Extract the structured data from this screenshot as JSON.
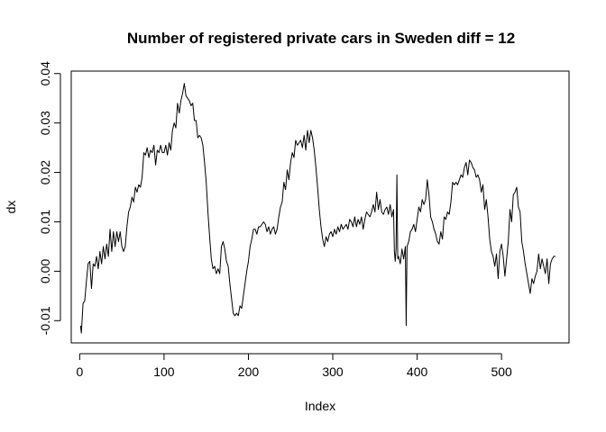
{
  "chart_data": {
    "type": "line",
    "title": "Number of registered private cars in Sweden diff = 12",
    "xlabel": "Index",
    "ylabel": "dx",
    "xlim": [
      -10,
      580
    ],
    "ylim": [
      -0.0145,
      0.0405
    ],
    "x_ticks": [
      0,
      100,
      200,
      300,
      400,
      500
    ],
    "x_tick_labels": [
      "0",
      "100",
      "200",
      "300",
      "400",
      "500"
    ],
    "y_ticks": [
      -0.01,
      0.0,
      0.01,
      0.02,
      0.03,
      0.04
    ],
    "y_tick_labels": [
      "-0.01",
      "0.00",
      "0.01",
      "0.02",
      "0.03",
      "0.04"
    ],
    "grid": false,
    "legend": "none",
    "series": [
      {
        "color": "#000000",
        "anchors": [
          [
            1,
            -0.011
          ],
          [
            2,
            -0.0125
          ],
          [
            4,
            -0.0065
          ],
          [
            6,
            -0.006
          ],
          [
            8,
            -0.002
          ],
          [
            10,
            0.0015
          ],
          [
            12,
            0.002
          ],
          [
            14,
            -0.0035
          ],
          [
            16,
            0.0015
          ],
          [
            18,
            0.001
          ],
          [
            20,
            0.003
          ],
          [
            22,
            0.0005
          ],
          [
            24,
            0.004
          ],
          [
            26,
            0.0015
          ],
          [
            28,
            0.005
          ],
          [
            30,
            0.0025
          ],
          [
            32,
            0.0055
          ],
          [
            34,
            0.003
          ],
          [
            36,
            0.0085
          ],
          [
            38,
            0.004
          ],
          [
            40,
            0.008
          ],
          [
            42,
            0.005
          ],
          [
            44,
            0.008
          ],
          [
            46,
            0.006
          ],
          [
            48,
            0.008
          ],
          [
            50,
            0.005
          ],
          [
            52,
            0.004
          ],
          [
            54,
            0.005
          ],
          [
            56,
            0.009
          ],
          [
            58,
            0.012
          ],
          [
            60,
            0.013
          ],
          [
            62,
            0.015
          ],
          [
            64,
            0.014
          ],
          [
            66,
            0.017
          ],
          [
            68,
            0.016
          ],
          [
            70,
            0.0175
          ],
          [
            72,
            0.017
          ],
          [
            74,
            0.019
          ],
          [
            76,
            0.024
          ],
          [
            78,
            0.0235
          ],
          [
            80,
            0.025
          ],
          [
            82,
            0.023
          ],
          [
            84,
            0.0245
          ],
          [
            86,
            0.024
          ],
          [
            88,
            0.0255
          ],
          [
            90,
            0.0215
          ],
          [
            92,
            0.0245
          ],
          [
            94,
            0.024
          ],
          [
            96,
            0.0255
          ],
          [
            98,
            0.024
          ],
          [
            100,
            0.024
          ],
          [
            102,
            0.0255
          ],
          [
            104,
            0.0235
          ],
          [
            106,
            0.026
          ],
          [
            108,
            0.0245
          ],
          [
            110,
            0.0285
          ],
          [
            112,
            0.03
          ],
          [
            114,
            0.029
          ],
          [
            116,
            0.034
          ],
          [
            118,
            0.032
          ],
          [
            120,
            0.0345
          ],
          [
            122,
            0.036
          ],
          [
            124,
            0.038
          ],
          [
            126,
            0.0355
          ],
          [
            128,
            0.035
          ],
          [
            130,
            0.0345
          ],
          [
            132,
            0.0335
          ],
          [
            134,
            0.034
          ],
          [
            136,
            0.0305
          ],
          [
            138,
            0.0305
          ],
          [
            140,
            0.027
          ],
          [
            142,
            0.0275
          ],
          [
            144,
            0.027
          ],
          [
            146,
            0.0255
          ],
          [
            148,
            0.022
          ],
          [
            150,
            0.018
          ],
          [
            152,
            0.012
          ],
          [
            154,
            0.007
          ],
          [
            156,
            0.0025
          ],
          [
            158,
            0.0005
          ],
          [
            160,
            0.001
          ],
          [
            162,
            -0.0005
          ],
          [
            164,
            0.0005
          ],
          [
            166,
            -0.0005
          ],
          [
            168,
            0.005
          ],
          [
            170,
            0.006
          ],
          [
            172,
            0.0045
          ],
          [
            174,
            0.002
          ],
          [
            176,
            0.001
          ],
          [
            178,
            -0.0025
          ],
          [
            180,
            -0.0055
          ],
          [
            182,
            -0.0085
          ],
          [
            184,
            -0.009
          ],
          [
            186,
            -0.0085
          ],
          [
            188,
            -0.009
          ],
          [
            190,
            -0.007
          ],
          [
            192,
            -0.0075
          ],
          [
            194,
            -0.005
          ],
          [
            196,
            -0.0025
          ],
          [
            198,
            0.0
          ],
          [
            200,
            0.002
          ],
          [
            202,
            0.005
          ],
          [
            204,
            0.0065
          ],
          [
            206,
            0.0085
          ],
          [
            208,
            0.0085
          ],
          [
            210,
            0.0075
          ],
          [
            212,
            0.009
          ],
          [
            214,
            0.009
          ],
          [
            216,
            0.0095
          ],
          [
            218,
            0.01
          ],
          [
            220,
            0.0095
          ],
          [
            222,
            0.008
          ],
          [
            224,
            0.009
          ],
          [
            226,
            0.0075
          ],
          [
            228,
            0.0085
          ],
          [
            230,
            0.009
          ],
          [
            232,
            0.0075
          ],
          [
            234,
            0.0085
          ],
          [
            236,
            0.011
          ],
          [
            238,
            0.013
          ],
          [
            240,
            0.014
          ],
          [
            242,
            0.018
          ],
          [
            244,
            0.0165
          ],
          [
            246,
            0.0205
          ],
          [
            248,
            0.0185
          ],
          [
            250,
            0.022
          ],
          [
            252,
            0.024
          ],
          [
            254,
            0.023
          ],
          [
            256,
            0.0265
          ],
          [
            258,
            0.0255
          ],
          [
            260,
            0.026
          ],
          [
            262,
            0.0265
          ],
          [
            264,
            0.025
          ],
          [
            266,
            0.0275
          ],
          [
            268,
            0.0245
          ],
          [
            270,
            0.0285
          ],
          [
            272,
            0.026
          ],
          [
            274,
            0.0285
          ],
          [
            276,
            0.027
          ],
          [
            278,
            0.0245
          ],
          [
            280,
            0.021
          ],
          [
            282,
            0.017
          ],
          [
            284,
            0.0125
          ],
          [
            286,
            0.009
          ],
          [
            288,
            0.0065
          ],
          [
            290,
            0.005
          ],
          [
            292,
            0.007
          ],
          [
            294,
            0.006
          ],
          [
            296,
            0.0075
          ],
          [
            298,
            0.008
          ],
          [
            300,
            0.007
          ],
          [
            302,
            0.0085
          ],
          [
            304,
            0.0075
          ],
          [
            306,
            0.009
          ],
          [
            308,
            0.008
          ],
          [
            310,
            0.0095
          ],
          [
            312,
            0.0085
          ],
          [
            314,
            0.009
          ],
          [
            316,
            0.0095
          ],
          [
            318,
            0.0085
          ],
          [
            320,
            0.0105
          ],
          [
            322,
            0.01
          ],
          [
            324,
            0.009
          ],
          [
            326,
            0.011
          ],
          [
            328,
            0.009
          ],
          [
            330,
            0.0105
          ],
          [
            332,
            0.0095
          ],
          [
            334,
            0.011
          ],
          [
            336,
            0.0085
          ],
          [
            338,
            0.0105
          ],
          [
            340,
            0.012
          ],
          [
            342,
            0.0115
          ],
          [
            344,
            0.011
          ],
          [
            346,
            0.012
          ],
          [
            348,
            0.0135
          ],
          [
            350,
            0.012
          ],
          [
            352,
            0.016
          ],
          [
            354,
            0.0125
          ],
          [
            356,
            0.0145
          ],
          [
            358,
            0.012
          ],
          [
            360,
            0.0115
          ],
          [
            362,
            0.0125
          ],
          [
            364,
            0.013
          ],
          [
            366,
            0.0115
          ],
          [
            368,
            0.0135
          ],
          [
            370,
            0.011
          ],
          [
            372,
            0.0125
          ],
          [
            373,
            0.004
          ],
          [
            374,
            0.002
          ],
          [
            375,
            0.0045
          ],
          [
            376,
            0.0195
          ],
          [
            377,
            0.0025
          ],
          [
            378,
            0.003
          ],
          [
            380,
            0.0015
          ],
          [
            382,
            0.0045
          ],
          [
            384,
            0.0025
          ],
          [
            386,
            0.005
          ],
          [
            387,
            -0.011
          ],
          [
            388,
            0.005
          ],
          [
            390,
            0.006
          ],
          [
            392,
            0.008
          ],
          [
            394,
            0.0085
          ],
          [
            396,
            0.0095
          ],
          [
            398,
            0.008
          ],
          [
            400,
            0.0105
          ],
          [
            402,
            0.013
          ],
          [
            404,
            0.012
          ],
          [
            406,
            0.0145
          ],
          [
            408,
            0.0135
          ],
          [
            410,
            0.0145
          ],
          [
            412,
            0.0185
          ],
          [
            414,
            0.0155
          ],
          [
            416,
            0.011
          ],
          [
            418,
            0.01
          ],
          [
            420,
            0.0085
          ],
          [
            422,
            0.0075
          ],
          [
            424,
            0.006
          ],
          [
            426,
            0.0055
          ],
          [
            428,
            0.008
          ],
          [
            430,
            0.0065
          ],
          [
            432,
            0.011
          ],
          [
            434,
            0.0105
          ],
          [
            436,
            0.012
          ],
          [
            438,
            0.0115
          ],
          [
            440,
            0.014
          ],
          [
            442,
            0.018
          ],
          [
            444,
            0.0175
          ],
          [
            446,
            0.018
          ],
          [
            448,
            0.0175
          ],
          [
            450,
            0.0185
          ],
          [
            452,
            0.0195
          ],
          [
            454,
            0.019
          ],
          [
            456,
            0.021
          ],
          [
            458,
            0.022
          ],
          [
            460,
            0.0195
          ],
          [
            462,
            0.0225
          ],
          [
            464,
            0.022
          ],
          [
            466,
            0.021
          ],
          [
            468,
            0.0205
          ],
          [
            470,
            0.019
          ],
          [
            472,
            0.0195
          ],
          [
            474,
            0.0185
          ],
          [
            476,
            0.016
          ],
          [
            478,
            0.0175
          ],
          [
            480,
            0.0125
          ],
          [
            482,
            0.0145
          ],
          [
            484,
            0.011
          ],
          [
            486,
            0.0065
          ],
          [
            488,
            0.004
          ],
          [
            490,
            0.003
          ],
          [
            492,
            0.001
          ],
          [
            494,
            0.0035
          ],
          [
            496,
            -0.0015
          ],
          [
            498,
            0.004
          ],
          [
            500,
            0.0055
          ],
          [
            502,
            0.003
          ],
          [
            504,
            -0.001
          ],
          [
            506,
            0.0025
          ],
          [
            508,
            0.006
          ],
          [
            510,
            0.0125
          ],
          [
            512,
            0.01
          ],
          [
            514,
            0.0155
          ],
          [
            516,
            0.016
          ],
          [
            518,
            0.017
          ],
          [
            520,
            0.013
          ],
          [
            522,
            0.012
          ],
          [
            524,
            0.006
          ],
          [
            526,
            0.004
          ],
          [
            528,
            0.0015
          ],
          [
            530,
            -0.0005
          ],
          [
            532,
            -0.0025
          ],
          [
            534,
            -0.0045
          ],
          [
            536,
            -0.0015
          ],
          [
            538,
            -0.0025
          ],
          [
            540,
            -0.001
          ],
          [
            542,
            0.0
          ],
          [
            544,
            0.0035
          ],
          [
            546,
            0.0005
          ],
          [
            548,
            0.0025
          ],
          [
            550,
            0.001
          ],
          [
            552,
            -0.0005
          ],
          [
            554,
            0.0025
          ],
          [
            556,
            -0.0025
          ],
          [
            558,
            0.0015
          ],
          [
            560,
            0.0025
          ],
          [
            562,
            0.003
          ],
          [
            564,
            0.003
          ]
        ]
      }
    ]
  }
}
